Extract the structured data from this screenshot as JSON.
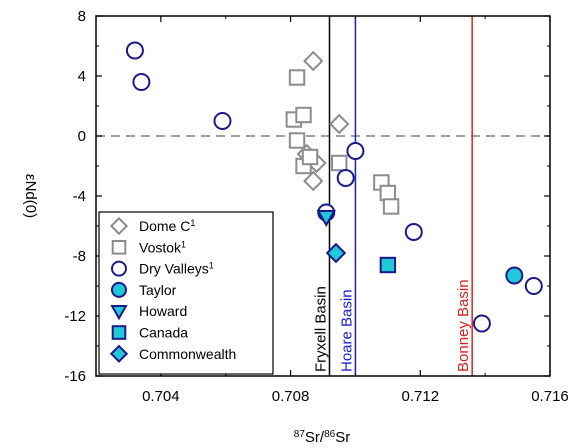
{
  "chart_data": {
    "type": "scatter",
    "title": "",
    "xlabel": {
      "pre_sup": "87",
      "mid1": "Sr/",
      "mid_sup": "86",
      "mid2": "Sr"
    },
    "ylabel": "εNd(0)",
    "xlim": [
      0.702,
      0.716
    ],
    "ylim": [
      -16,
      8
    ],
    "x_ticks": [
      {
        "value": 0.704,
        "label": "0.704"
      },
      {
        "value": 0.708,
        "label": "0.708"
      },
      {
        "value": 0.712,
        "label": "0.712"
      },
      {
        "value": 0.716,
        "label": "0.716"
      }
    ],
    "y_ticks": [
      {
        "value": 8,
        "label": "8"
      },
      {
        "value": 4,
        "label": "4"
      },
      {
        "value": 0,
        "label": "0"
      },
      {
        "value": -4,
        "label": "-4"
      },
      {
        "value": -8,
        "label": "-8"
      },
      {
        "value": -12,
        "label": "-12"
      },
      {
        "value": -16,
        "label": "-16"
      }
    ],
    "reference_line_y": 0,
    "vertical_lines": [
      {
        "label": "Fryxell Basin",
        "x": 0.7092,
        "color": "#000000"
      },
      {
        "label": "Hoare Basin",
        "x": 0.71,
        "color": "#1a1ad0"
      },
      {
        "label": "Bonney Basin",
        "x": 0.7136,
        "color": "#e02020"
      }
    ],
    "series": [
      {
        "name": "Dome C",
        "sup": "1",
        "marker": "diamond",
        "fill": "#ffffff",
        "stroke": "#8c8c8c",
        "points": [
          {
            "x": 0.7087,
            "y": 5.0
          },
          {
            "x": 0.7095,
            "y": 0.8
          },
          {
            "x": 0.7085,
            "y": -1.2
          },
          {
            "x": 0.7088,
            "y": -1.8
          },
          {
            "x": 0.7087,
            "y": -3.0
          }
        ]
      },
      {
        "name": "Vostok",
        "sup": "1",
        "marker": "square",
        "fill": "#ffffff",
        "stroke": "#8c8c8c",
        "points": [
          {
            "x": 0.7082,
            "y": 3.9
          },
          {
            "x": 0.7081,
            "y": 1.1
          },
          {
            "x": 0.7084,
            "y": 1.4
          },
          {
            "x": 0.7082,
            "y": -0.3
          },
          {
            "x": 0.7084,
            "y": -2.0
          },
          {
            "x": 0.7086,
            "y": -1.4
          },
          {
            "x": 0.7095,
            "y": -1.8
          },
          {
            "x": 0.7108,
            "y": -3.1
          },
          {
            "x": 0.711,
            "y": -3.8
          },
          {
            "x": 0.7111,
            "y": -4.7
          }
        ]
      },
      {
        "name": "Dry Valleys",
        "sup": "1",
        "marker": "circle",
        "fill": "#ffffff",
        "stroke": "#1a1a8c",
        "points": [
          {
            "x": 0.7032,
            "y": 5.7
          },
          {
            "x": 0.7034,
            "y": 3.6
          },
          {
            "x": 0.7059,
            "y": 1.0
          },
          {
            "x": 0.71,
            "y": -1.0
          },
          {
            "x": 0.7097,
            "y": -2.8
          },
          {
            "x": 0.7091,
            "y": -5.1
          },
          {
            "x": 0.7118,
            "y": -6.4
          },
          {
            "x": 0.7139,
            "y": -12.5
          },
          {
            "x": 0.7155,
            "y": -10.0
          }
        ]
      },
      {
        "name": "Taylor",
        "sup": "",
        "marker": "circle",
        "fill": "#20c8d8",
        "stroke": "#1a1a8c",
        "points": [
          {
            "x": 0.7149,
            "y": -9.3
          }
        ]
      },
      {
        "name": "Howard",
        "sup": "",
        "marker": "triangle",
        "fill": "#20c8d8",
        "stroke": "#1a1a8c",
        "points": [
          {
            "x": 0.7091,
            "y": -5.4
          }
        ]
      },
      {
        "name": "Canada",
        "sup": "",
        "marker": "square",
        "fill": "#20c8d8",
        "stroke": "#1a1a8c",
        "points": [
          {
            "x": 0.711,
            "y": -8.6
          }
        ]
      },
      {
        "name": "Commonwealth",
        "sup": "",
        "marker": "diamond",
        "fill": "#20c8d8",
        "stroke": "#1a1a8c",
        "points": [
          {
            "x": 0.7094,
            "y": -7.8
          }
        ]
      }
    ],
    "grid": false,
    "legend_position": "bottom-left"
  }
}
